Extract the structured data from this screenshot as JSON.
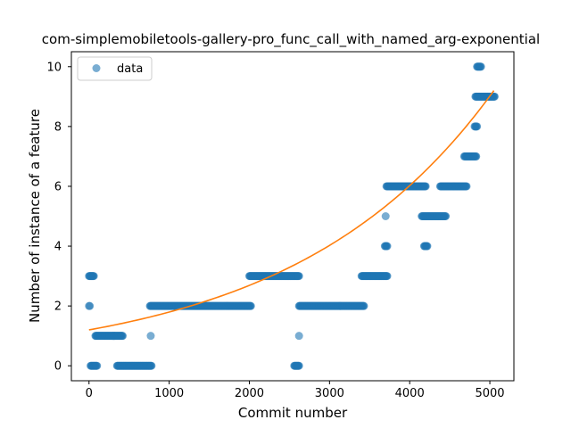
{
  "chart_data": {
    "type": "scatter",
    "title": "com-simplemobiletools-gallery-pro_func_call_with_named_arg-exponential",
    "xlabel": "Commit number",
    "ylabel": "Number of instance of a feature",
    "xlim": [
      -220,
      5300
    ],
    "ylim": [
      -0.5,
      10.5
    ],
    "xticks": [
      0,
      1000,
      2000,
      3000,
      4000,
      5000
    ],
    "yticks": [
      0,
      2,
      4,
      6,
      8,
      10
    ],
    "grid": false,
    "legend": {
      "placement": "top-left",
      "entries": [
        "data"
      ]
    },
    "colors": {
      "data": "#1f77b4",
      "fit": "#ff7f0e"
    },
    "series": [
      {
        "name": "data",
        "kind": "scatter",
        "segments": [
          {
            "x_start": 0,
            "x_end": 10,
            "y": 2
          },
          {
            "x_start": 0,
            "x_end": 60,
            "y": 3
          },
          {
            "x_start": 20,
            "x_end": 100,
            "y": 0
          },
          {
            "x_start": 80,
            "x_end": 420,
            "y": 1
          },
          {
            "x_start": 350,
            "x_end": 780,
            "y": 0
          },
          {
            "x_start": 760,
            "x_end": 2020,
            "y": 2
          },
          {
            "x_start": 2000,
            "x_end": 2620,
            "y": 3
          },
          {
            "x_start": 2560,
            "x_end": 2620,
            "y": 0
          },
          {
            "x_start": 2620,
            "x_end": 3430,
            "y": 2
          },
          {
            "x_start": 3400,
            "x_end": 3720,
            "y": 3
          },
          {
            "x_start": 3690,
            "x_end": 3720,
            "y": 4
          },
          {
            "x_start": 3710,
            "x_end": 4200,
            "y": 6
          },
          {
            "x_start": 4150,
            "x_end": 4450,
            "y": 5
          },
          {
            "x_start": 4180,
            "x_end": 4220,
            "y": 4
          },
          {
            "x_start": 4380,
            "x_end": 4710,
            "y": 6
          },
          {
            "x_start": 4680,
            "x_end": 4830,
            "y": 7
          },
          {
            "x_start": 4810,
            "x_end": 4840,
            "y": 8
          },
          {
            "x_start": 4820,
            "x_end": 5060,
            "y": 9
          },
          {
            "x_start": 4840,
            "x_end": 4890,
            "y": 10
          }
        ],
        "outliers": [
          {
            "x": 770,
            "y": 1
          },
          {
            "x": 2620,
            "y": 1
          },
          {
            "x": 3700,
            "y": 5
          }
        ]
      },
      {
        "name": "",
        "kind": "line",
        "model": "exponential",
        "x_range": [
          0,
          5050
        ],
        "y_at_start": 1.2,
        "y_at_end": 9.2
      }
    ]
  }
}
